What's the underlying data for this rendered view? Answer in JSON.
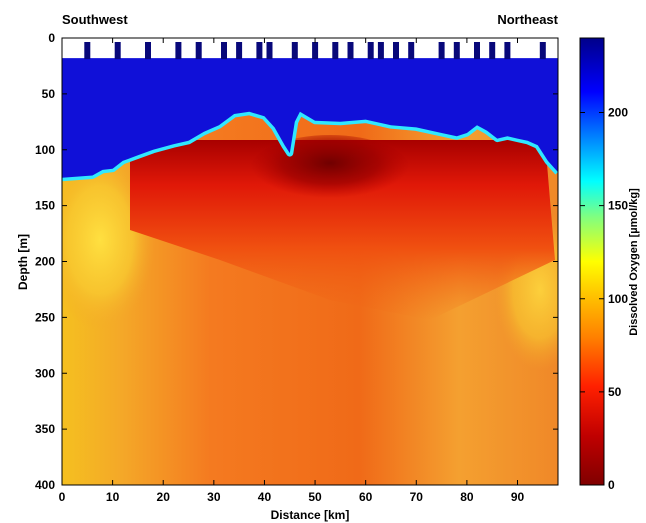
{
  "chart_data": {
    "type": "heatmap",
    "corner_labels": {
      "left": "Southwest",
      "right": "Northeast"
    },
    "xlabel": "Distance [km]",
    "ylabel": "Depth [m]",
    "xlim": [
      0,
      98
    ],
    "ylim": [
      400,
      0
    ],
    "x_ticks": [
      "0",
      "10",
      "20",
      "30",
      "40",
      "50",
      "60",
      "70",
      "80",
      "90"
    ],
    "y_ticks": [
      "0",
      "50",
      "100",
      "150",
      "200",
      "250",
      "300",
      "350",
      "400"
    ],
    "colorbar": {
      "label": "Dissolved Oxygen [µmol/kg]",
      "range": [
        0,
        240
      ],
      "ticks": [
        "0",
        "50",
        "100",
        "150",
        "200"
      ],
      "colormap": "jet"
    },
    "no_data_top_depth_m": 18,
    "station_km": [
      5,
      11,
      17,
      23,
      27,
      32,
      35,
      39,
      41,
      46,
      50,
      54,
      57,
      61,
      63,
      66,
      69,
      75,
      78,
      82,
      85,
      88,
      95
    ],
    "hypoxic_layer_top_m": [
      [
        0,
        125
      ],
      [
        6,
        123
      ],
      [
        8,
        118
      ],
      [
        10,
        117
      ],
      [
        12,
        110
      ],
      [
        15,
        105
      ],
      [
        18,
        100
      ],
      [
        22,
        95
      ],
      [
        25,
        92
      ],
      [
        28,
        84
      ],
      [
        31,
        78
      ],
      [
        34,
        68
      ],
      [
        37,
        66
      ],
      [
        40,
        70
      ],
      [
        42,
        80
      ],
      [
        44,
        96
      ],
      [
        45,
        103
      ],
      [
        46,
        75
      ],
      [
        47,
        66
      ],
      [
        50,
        74
      ],
      [
        55,
        75
      ],
      [
        60,
        73
      ],
      [
        65,
        78
      ],
      [
        70,
        80
      ],
      [
        75,
        85
      ],
      [
        78,
        88
      ],
      [
        80,
        85
      ],
      [
        82,
        78
      ],
      [
        84,
        83
      ],
      [
        86,
        90
      ],
      [
        88,
        88
      ],
      [
        90,
        90
      ],
      [
        92,
        92
      ],
      [
        94,
        96
      ],
      [
        96,
        110
      ],
      [
        98,
        120
      ]
    ]
  }
}
